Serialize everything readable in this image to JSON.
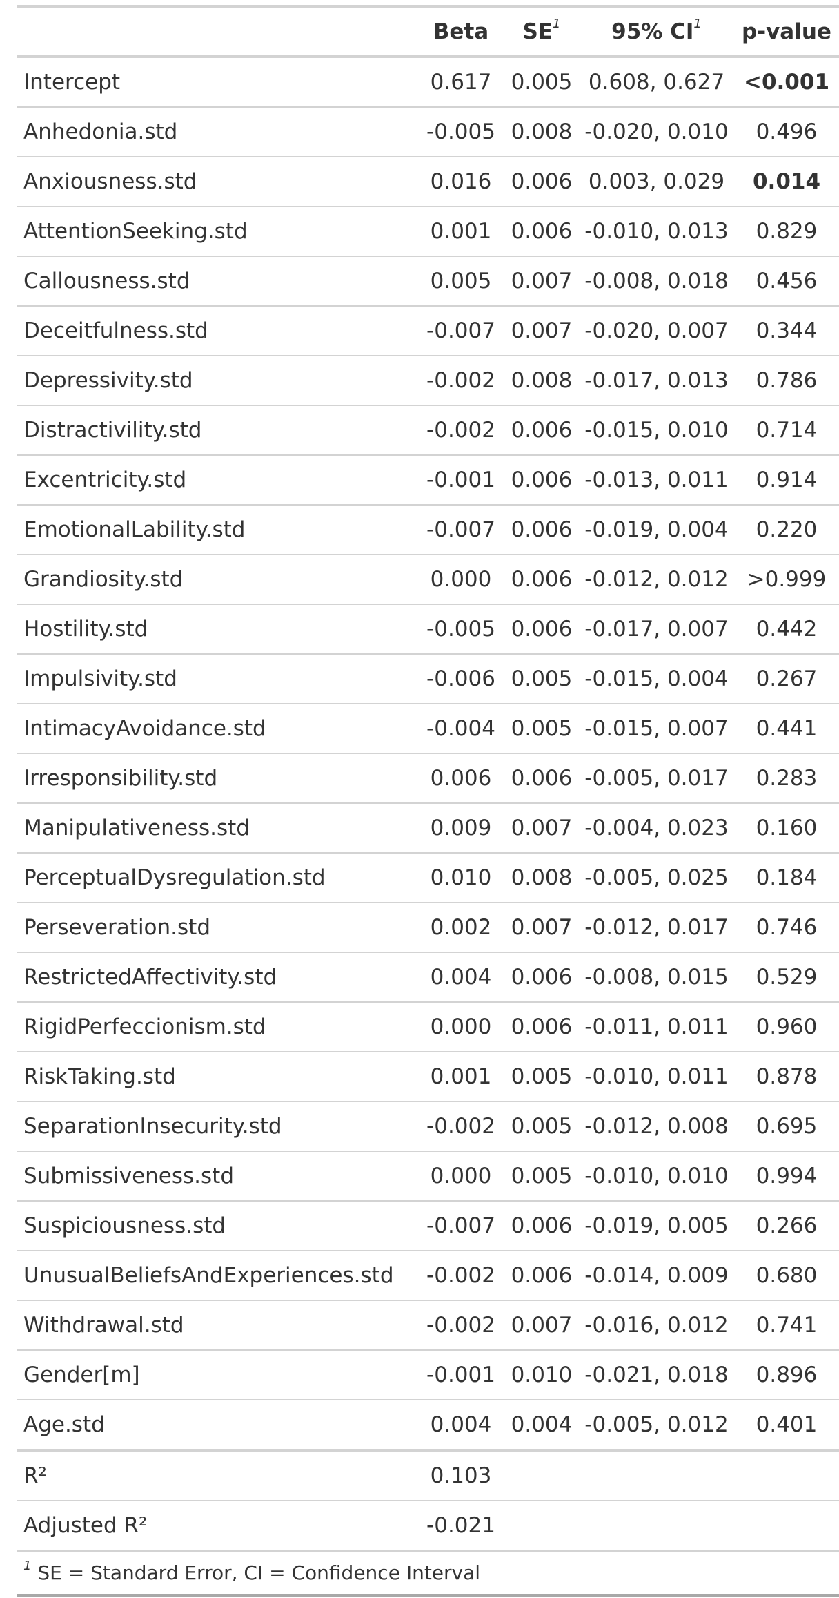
{
  "table": {
    "headers": {
      "label": "",
      "beta": "Beta",
      "se": "SE",
      "se_marker": "1",
      "ci": "95% CI",
      "ci_marker": "1",
      "p": "p-value"
    },
    "rows": [
      {
        "label": "Intercept",
        "beta": "0.617",
        "se": "0.005",
        "ci": "0.608, 0.627",
        "p": "<0.001",
        "significant": true
      },
      {
        "label": "Anhedonia.std",
        "beta": "-0.005",
        "se": "0.008",
        "ci": "-0.020, 0.010",
        "p": "0.496",
        "significant": false
      },
      {
        "label": "Anxiousness.std",
        "beta": "0.016",
        "se": "0.006",
        "ci": "0.003, 0.029",
        "p": "0.014",
        "significant": true
      },
      {
        "label": "AttentionSeeking.std",
        "beta": "0.001",
        "se": "0.006",
        "ci": "-0.010, 0.013",
        "p": "0.829",
        "significant": false
      },
      {
        "label": "Callousness.std",
        "beta": "0.005",
        "se": "0.007",
        "ci": "-0.008, 0.018",
        "p": "0.456",
        "significant": false
      },
      {
        "label": "Deceitfulness.std",
        "beta": "-0.007",
        "se": "0.007",
        "ci": "-0.020, 0.007",
        "p": "0.344",
        "significant": false
      },
      {
        "label": "Depressivity.std",
        "beta": "-0.002",
        "se": "0.008",
        "ci": "-0.017, 0.013",
        "p": "0.786",
        "significant": false
      },
      {
        "label": "Distractivility.std",
        "beta": "-0.002",
        "se": "0.006",
        "ci": "-0.015, 0.010",
        "p": "0.714",
        "significant": false
      },
      {
        "label": "Excentricity.std",
        "beta": "-0.001",
        "se": "0.006",
        "ci": "-0.013, 0.011",
        "p": "0.914",
        "significant": false
      },
      {
        "label": "EmotionalLability.std",
        "beta": "-0.007",
        "se": "0.006",
        "ci": "-0.019, 0.004",
        "p": "0.220",
        "significant": false
      },
      {
        "label": "Grandiosity.std",
        "beta": "0.000",
        "se": "0.006",
        "ci": "-0.012, 0.012",
        "p": ">0.999",
        "significant": false
      },
      {
        "label": "Hostility.std",
        "beta": "-0.005",
        "se": "0.006",
        "ci": "-0.017, 0.007",
        "p": "0.442",
        "significant": false
      },
      {
        "label": "Impulsivity.std",
        "beta": "-0.006",
        "se": "0.005",
        "ci": "-0.015, 0.004",
        "p": "0.267",
        "significant": false
      },
      {
        "label": "IntimacyAvoidance.std",
        "beta": "-0.004",
        "se": "0.005",
        "ci": "-0.015, 0.007",
        "p": "0.441",
        "significant": false
      },
      {
        "label": "Irresponsibility.std",
        "beta": "0.006",
        "se": "0.006",
        "ci": "-0.005, 0.017",
        "p": "0.283",
        "significant": false
      },
      {
        "label": "Manipulativeness.std",
        "beta": "0.009",
        "se": "0.007",
        "ci": "-0.004, 0.023",
        "p": "0.160",
        "significant": false
      },
      {
        "label": "PerceptualDysregulation.std",
        "beta": "0.010",
        "se": "0.008",
        "ci": "-0.005, 0.025",
        "p": "0.184",
        "significant": false
      },
      {
        "label": "Perseveration.std",
        "beta": "0.002",
        "se": "0.007",
        "ci": "-0.012, 0.017",
        "p": "0.746",
        "significant": false
      },
      {
        "label": "RestrictedAffectivity.std",
        "beta": "0.004",
        "se": "0.006",
        "ci": "-0.008, 0.015",
        "p": "0.529",
        "significant": false
      },
      {
        "label": "RigidPerfeccionism.std",
        "beta": "0.000",
        "se": "0.006",
        "ci": "-0.011, 0.011",
        "p": "0.960",
        "significant": false
      },
      {
        "label": "RiskTaking.std",
        "beta": "0.001",
        "se": "0.005",
        "ci": "-0.010, 0.011",
        "p": "0.878",
        "significant": false
      },
      {
        "label": "SeparationInsecurity.std",
        "beta": "-0.002",
        "se": "0.005",
        "ci": "-0.012, 0.008",
        "p": "0.695",
        "significant": false
      },
      {
        "label": "Submissiveness.std",
        "beta": "0.000",
        "se": "0.005",
        "ci": "-0.010, 0.010",
        "p": "0.994",
        "significant": false
      },
      {
        "label": "Suspiciousness.std",
        "beta": "-0.007",
        "se": "0.006",
        "ci": "-0.019, 0.005",
        "p": "0.266",
        "significant": false
      },
      {
        "label": "UnusualBeliefsAndExperiences.std",
        "beta": "-0.002",
        "se": "0.006",
        "ci": "-0.014, 0.009",
        "p": "0.680",
        "significant": false
      },
      {
        "label": "Withdrawal.std",
        "beta": "-0.002",
        "se": "0.007",
        "ci": "-0.016, 0.012",
        "p": "0.741",
        "significant": false
      },
      {
        "label": "Gender[m]",
        "beta": "-0.001",
        "se": "0.010",
        "ci": "-0.021, 0.018",
        "p": "0.896",
        "significant": false
      },
      {
        "label": "Age.std",
        "beta": "0.004",
        "se": "0.004",
        "ci": "-0.005, 0.012",
        "p": "0.401",
        "significant": false
      }
    ],
    "fit_stats": [
      {
        "label": "R²",
        "beta": "0.103"
      },
      {
        "label": "Adjusted R²",
        "beta": "-0.021"
      }
    ],
    "footnote": {
      "marker": "1",
      "text": "SE = Standard Error, CI = Confidence Interval"
    }
  },
  "colors": {
    "text": "#333333",
    "rule": "#d3d3d3",
    "bottom_rule": "#a8a8a8"
  }
}
